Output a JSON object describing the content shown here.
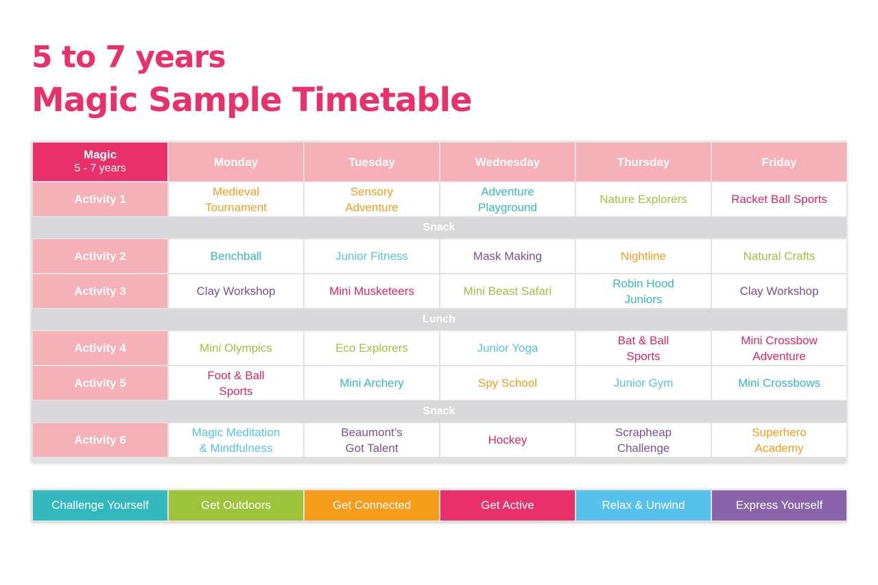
{
  "title": {
    "line1": "5 to 7 years",
    "line2": "Magic Sample Timetable"
  },
  "colors": {
    "challenge": "#33b9bd",
    "outdoors": "#9cc33a",
    "connected": "#f59c1a",
    "active": "#e8306a",
    "relax": "#56c1ea",
    "express": "#8b63ab",
    "header": "#f5b0b8",
    "break": "#d8d8da"
  },
  "timetable": {
    "corner": {
      "title": "Magic",
      "subtitle": "5 - 7 years"
    },
    "days": [
      "Monday",
      "Tuesday",
      "Wednesday",
      "Thursday",
      "Friday"
    ],
    "rows": [
      {
        "type": "activity",
        "label": "Activity 1",
        "cells": [
          {
            "text": "Medieval\nTournament",
            "color": "#f59c1a"
          },
          {
            "text": "Sensory\nAdventure",
            "color": "#f59c1a"
          },
          {
            "text": "Adventure\nPlayground",
            "color": "#33b9bd"
          },
          {
            "text": "Nature Explorers",
            "color": "#9cc33a"
          },
          {
            "text": "Racket Ball Sports",
            "color": "#d9285e"
          }
        ]
      },
      {
        "type": "break",
        "label": "Snack"
      },
      {
        "type": "activity",
        "label": "Activity 2",
        "cells": [
          {
            "text": "Benchball",
            "color": "#33b9bd"
          },
          {
            "text": "Junior Fitness",
            "color": "#56c1ea"
          },
          {
            "text": "Mask Making",
            "color": "#7a4f99"
          },
          {
            "text": "Nightline",
            "color": "#f59c1a"
          },
          {
            "text": "Natural Crafts",
            "color": "#9cc33a"
          }
        ]
      },
      {
        "type": "activity",
        "label": "Activity 3",
        "cells": [
          {
            "text": "Clay Workshop",
            "color": "#7a4f99"
          },
          {
            "text": "Mini Musketeers",
            "color": "#d9285e"
          },
          {
            "text": "Mini Beast Safari",
            "color": "#9cc33a"
          },
          {
            "text": "Robin Hood\nJuniors",
            "color": "#33b9bd"
          },
          {
            "text": "Clay Workshop",
            "color": "#7a4f99"
          }
        ]
      },
      {
        "type": "break",
        "label": "Lunch"
      },
      {
        "type": "activity",
        "label": "Activity 4",
        "cells": [
          {
            "text": "Mini Olympics",
            "color": "#9cc33a"
          },
          {
            "text": "Eco Explorers",
            "color": "#9cc33a"
          },
          {
            "text": "Junior Yoga",
            "color": "#56c1ea"
          },
          {
            "text": "Bat & Ball\nSports",
            "color": "#d9285e"
          },
          {
            "text": "Mini Crossbow\nAdventure",
            "color": "#d9285e"
          }
        ]
      },
      {
        "type": "activity",
        "label": "Activity 5",
        "cells": [
          {
            "text": "Foot & Ball\nSports",
            "color": "#d9285e"
          },
          {
            "text": "Mini Archery",
            "color": "#33b9bd"
          },
          {
            "text": "Spy School",
            "color": "#f59c1a"
          },
          {
            "text": "Junior Gym",
            "color": "#56c1ea"
          },
          {
            "text": "Mini Crossbows",
            "color": "#33b9bd"
          }
        ]
      },
      {
        "type": "break",
        "label": "Snack"
      },
      {
        "type": "activity",
        "label": "Activity 6",
        "cells": [
          {
            "text": "Magic Meditation\n& Mindfulness",
            "color": "#56c1ea"
          },
          {
            "text": "Beaumont’s\nGot Talent",
            "color": "#7a4f99"
          },
          {
            "text": "Hockey",
            "color": "#d9285e"
          },
          {
            "text": "Scrapheap\nChallenge",
            "color": "#7a4f99"
          },
          {
            "text": "Superhero\nAcademy",
            "color": "#f59c1a"
          }
        ]
      }
    ]
  },
  "legend": [
    {
      "label": "Challenge Yourself",
      "color": "#33b9bd"
    },
    {
      "label": "Get Outdoors",
      "color": "#9cc33a"
    },
    {
      "label": "Get Connected",
      "color": "#f59c1a"
    },
    {
      "label": "Get Active",
      "color": "#e8306a"
    },
    {
      "label": "Relax & Unwind",
      "color": "#56c1ea"
    },
    {
      "label": "Express Yourself",
      "color": "#8b63ab"
    }
  ]
}
